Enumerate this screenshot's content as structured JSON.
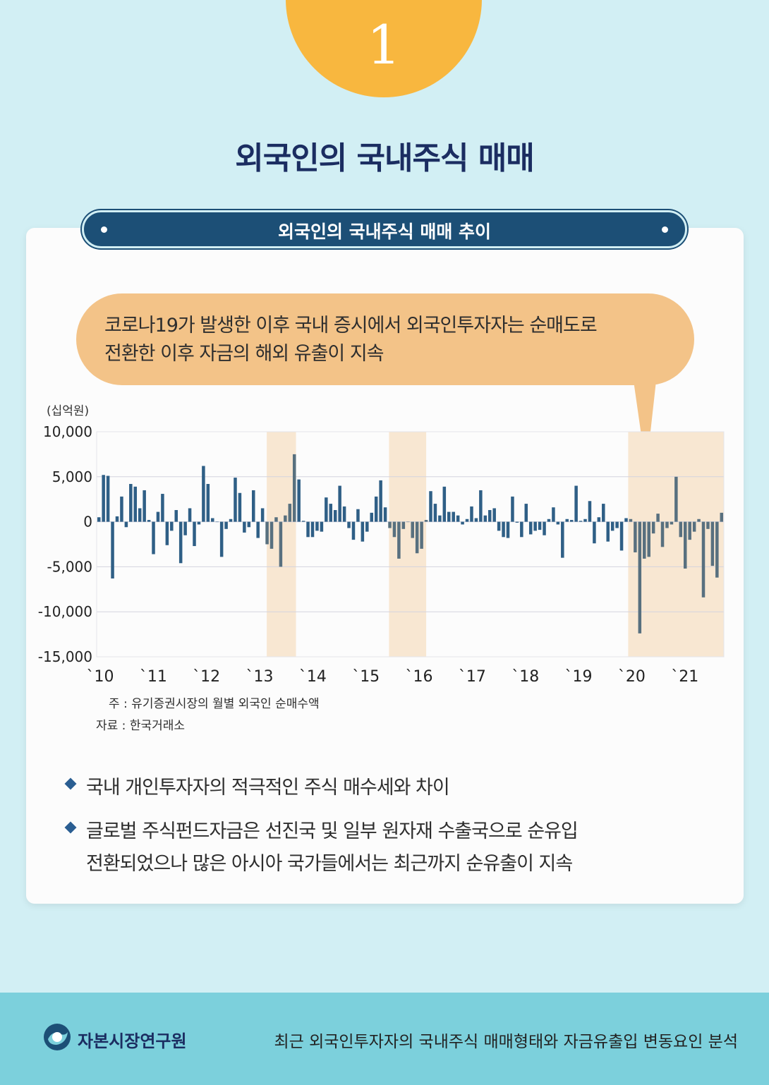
{
  "badge_number": "1",
  "page_title": "외국인의 국내주식 매매",
  "panel_title": "외국인의 국내주식 매매 추이",
  "callout": "코로나19가 발생한 이후 국내 증시에서 외국인투자자는 순매도로\n전환한 이후 자금의 해외 유출이 지속",
  "chart_data": {
    "type": "bar",
    "unit_label": "(십억원)",
    "ylim": [
      -15000,
      10000
    ],
    "y_ticks": [
      10000,
      5000,
      0,
      -5000,
      -10000,
      -15000
    ],
    "y_tick_labels": [
      "10,000",
      "5,000",
      "0",
      "-5,000",
      "-10,000",
      "-15,000"
    ],
    "x_tick_labels": [
      "`10",
      "`11",
      "`12",
      "`13",
      "`14",
      "`15",
      "`16",
      "`17",
      "`18",
      "`19",
      "`20",
      "`21"
    ],
    "x_start_year": 2010,
    "x_end": 2021.8,
    "shaded_periods": [
      [
        2013.2,
        2013.75
      ],
      [
        2015.5,
        2016.2
      ],
      [
        2020.0,
        2021.8
      ]
    ],
    "values": [
      500,
      5200,
      5100,
      -6300,
      600,
      2800,
      -600,
      4200,
      3900,
      1500,
      3500,
      200,
      -3600,
      1100,
      3100,
      -2600,
      -1000,
      1300,
      -4600,
      -1500,
      1500,
      -2700,
      -300,
      6200,
      4200,
      400,
      0,
      -3900,
      -800,
      300,
      4900,
      3200,
      -1200,
      -600,
      3500,
      -1800,
      1500,
      -2500,
      -3000,
      500,
      -5000,
      700,
      2000,
      7500,
      4700,
      100,
      -1700,
      -1700,
      -1000,
      -1100,
      2700,
      2000,
      1300,
      4000,
      1700,
      -700,
      -2000,
      1400,
      -2200,
      -1100,
      1000,
      2800,
      4600,
      1600,
      -700,
      -1700,
      -4100,
      -800,
      0,
      -1800,
      -3500,
      -3000,
      200,
      3400,
      2000,
      700,
      3900,
      1100,
      1100,
      700,
      -300,
      300,
      1700,
      400,
      3500,
      700,
      1300,
      1500,
      -1000,
      -1700,
      -1800,
      2800,
      -100,
      -1700,
      2000,
      -1400,
      -1000,
      -900,
      -1500,
      300,
      1600,
      -300,
      -4000,
      300,
      200,
      4000,
      100,
      300,
      2300,
      -2400,
      500,
      2000,
      -2200,
      -1000,
      -700,
      -3200,
      400,
      300,
      -3400,
      -12400,
      -4100,
      -3900,
      -1300,
      900,
      -2800,
      -700,
      -300,
      5000,
      -1700,
      -5200,
      -2000,
      -1100,
      300,
      -8400,
      -800,
      -4900,
      -6200,
      1000
    ]
  },
  "notes": {
    "note1": "주 : 유기증권시장의 월별 외국인 순매수액",
    "note2": "자료 : 한국거래소"
  },
  "bullets": [
    "국내 개인투자자의 적극적인 주식 매수세와 차이",
    "글로벌 주식펀드자금은 선진국 및 일부 원자재 수출국으로 순유입\n전환되었으나 많은 아시아 국가들에서는 최근까지 순유출이 지속"
  ],
  "footer": {
    "org": "자본시장연구원",
    "report": "최근 외국인투자자의 국내주식 매매형태와 자금유출입 변동요인 분석"
  },
  "colors": {
    "bar": "#2f5f86",
    "bar_shaded": "#58707f",
    "shade": "#f8e7d2",
    "badge": "#f8b73f",
    "banner": "#1c4f76",
    "callout": "#f3c388"
  }
}
